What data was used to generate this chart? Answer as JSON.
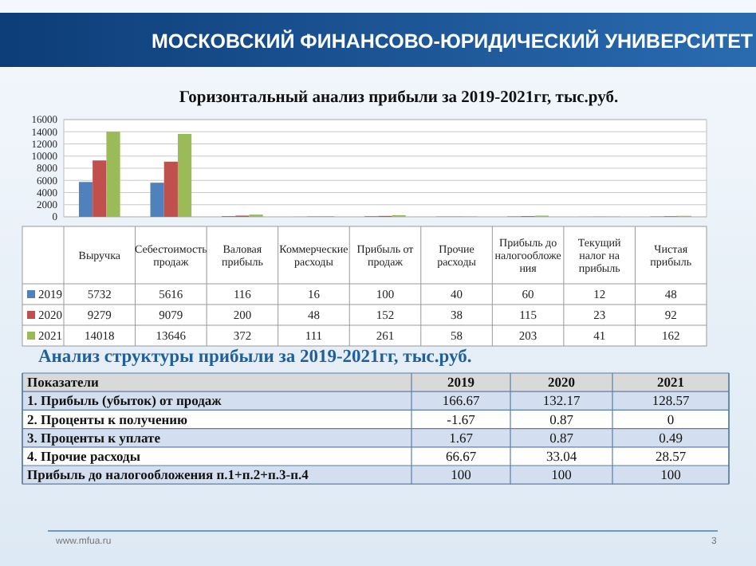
{
  "chart_data": [
    {
      "type": "bar",
      "title": "Горизонтальный анализ прибыли за 2019-2021гг, тыс.руб.",
      "categories": [
        "Выручка",
        "Себестоимость продаж",
        "Валовая прибыль",
        "Коммерческие расходы",
        "Прибыль от продаж",
        "Прочие расходы",
        "Прибыль до налогообложения",
        "Текущий налог на прибыль",
        "Чистая прибыль"
      ],
      "series": [
        {
          "name": "2019",
          "color": "#4f81bd",
          "values": [
            5732,
            5616,
            116,
            16,
            100,
            40,
            60,
            12,
            48
          ]
        },
        {
          "name": "2020",
          "color": "#c0504d",
          "values": [
            9279,
            9079,
            200,
            48,
            152,
            38,
            115,
            23,
            92
          ]
        },
        {
          "name": "2021",
          "color": "#9bbb59",
          "values": [
            14018,
            13646,
            372,
            111,
            261,
            58,
            203,
            41,
            162
          ]
        }
      ],
      "ylim": [
        0,
        16000
      ],
      "yticks": [
        0,
        2000,
        4000,
        6000,
        8000,
        10000,
        12000,
        14000,
        16000
      ],
      "grid": "y",
      "legend": "bottom",
      "data_labels": true,
      "annotations": [
        "МОСКОВСКИЙ ФИНАНСОВО-ЮРИДИЧЕСКИЙ УНИВЕРСИТЕТ",
        "www.mfua.ru",
        "3"
      ]
    },
    {
      "type": "other",
      "title": "Анализ структуры прибыли за 2019-2021гг, тыс.руб.",
      "legend_title": "Показатели",
      "data_labels": true,
      "categories": [
        "2019",
        "2020",
        "2021"
      ],
      "series": [
        {
          "name": "1. Прибыль (убыток) от продаж",
          "color": "#d3dfee",
          "values": [
            166.67,
            132.17,
            128.57
          ]
        },
        {
          "name": "2. Проценты к получению",
          "color": "#ffffff",
          "values": [
            -1.67,
            0.87,
            0
          ]
        },
        {
          "name": "3. Проценты к уплате",
          "color": "#d3dfee",
          "values": [
            1.67,
            0.87,
            0.49
          ]
        },
        {
          "name": "4. Прочие расходы",
          "color": "#ffffff",
          "values": [
            66.67,
            33.04,
            28.57
          ]
        },
        {
          "name": "Прибыль до налогообложения п.1+п.2+п.3-п.4",
          "color": "#d3dfee",
          "values": [
            100,
            100,
            100
          ]
        }
      ]
    }
  ]
}
